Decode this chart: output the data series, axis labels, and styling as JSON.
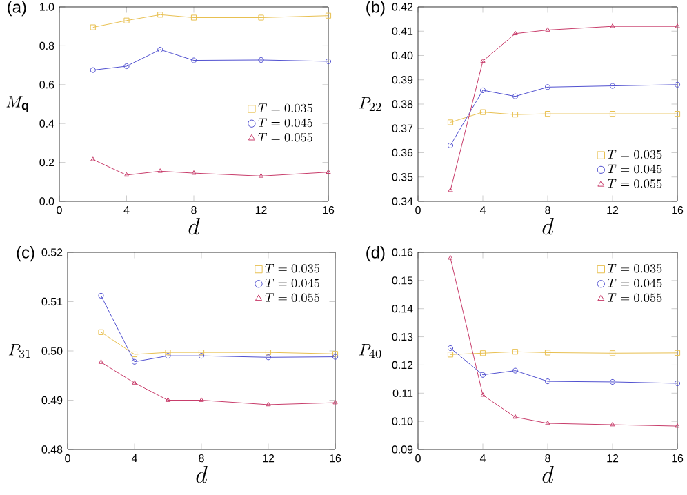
{
  "chart_data": [
    {
      "type": "line",
      "title": "(a)",
      "xlabel": "d",
      "ylabel": "M_{\\mathbf{q}}",
      "x": [
        2,
        4,
        6,
        8,
        12,
        16
      ],
      "xlim": [
        0,
        16
      ],
      "xticks": [
        0,
        4,
        8,
        12,
        16
      ],
      "ylim": [
        0,
        1
      ],
      "yticks": [
        {
          "value": 0,
          "label": "0.0"
        },
        {
          "value": 0.2,
          "label": "0.2"
        },
        {
          "value": 0.4,
          "label": "0.4"
        },
        {
          "value": 0.6,
          "label": "0.6"
        },
        {
          "value": 0.8,
          "label": "0.8"
        },
        {
          "value": 1,
          "label": "1.0"
        }
      ],
      "legend": "right",
      "grid": false,
      "series": [
        {
          "name": "T=0.035",
          "color": "#e8c050",
          "marker": "square",
          "values": [
            0.895,
            0.93,
            0.96,
            0.945,
            0.945,
            0.955
          ]
        },
        {
          "name": "T=0.045",
          "color": "#5050d0",
          "marker": "circle",
          "values": [
            0.675,
            0.695,
            0.78,
            0.725,
            0.727,
            0.72
          ]
        },
        {
          "name": "T=0.055",
          "color": "#c83c6a",
          "marker": "triangle",
          "values": [
            0.215,
            0.135,
            0.155,
            0.145,
            0.13,
            0.15
          ]
        }
      ]
    },
    {
      "type": "line",
      "title": "(b)",
      "xlabel": "d",
      "ylabel": "P_{22}",
      "x": [
        2,
        4,
        6,
        8,
        12,
        16
      ],
      "xlim": [
        0,
        16
      ],
      "xticks": [
        0,
        4,
        8,
        12,
        16
      ],
      "ylim": [
        0.34,
        0.42
      ],
      "yticks": [
        0.34,
        0.35,
        0.36,
        0.37,
        0.38,
        0.39,
        {
          "value": 0.4,
          "label": "0.40"
        },
        0.41,
        0.42
      ],
      "legend": "bottom right",
      "grid": false,
      "series": [
        {
          "name": "T=0.035",
          "color": "#e8c050",
          "marker": "square",
          "values": [
            0.3725,
            0.3767,
            0.3757,
            0.376,
            0.376,
            0.376
          ]
        },
        {
          "name": "T=0.045",
          "color": "#5050d0",
          "marker": "circle",
          "values": [
            0.363,
            0.3857,
            0.3832,
            0.387,
            0.3875,
            0.388
          ]
        },
        {
          "name": "T=0.055",
          "color": "#c83c6a",
          "marker": "triangle",
          "values": [
            0.3445,
            0.3977,
            0.409,
            0.4105,
            0.412,
            0.412
          ]
        }
      ]
    },
    {
      "type": "line",
      "title": "(c)",
      "xlabel": "d",
      "ylabel": "P_{31}",
      "x": [
        2,
        4,
        6,
        8,
        12,
        16
      ],
      "xlim": [
        0,
        16
      ],
      "xticks": [
        0,
        4,
        8,
        12,
        16
      ],
      "ylim": [
        0.48,
        0.52
      ],
      "yticks": [
        0.48,
        0.49,
        {
          "value": 0.5,
          "label": "0.50"
        },
        0.51,
        0.52
      ],
      "legend": "top right",
      "grid": false,
      "series": [
        {
          "name": "T=0.035",
          "color": "#e8c050",
          "marker": "square",
          "values": [
            0.5038,
            0.4993,
            0.4997,
            0.4997,
            0.4997,
            0.4994
          ]
        },
        {
          "name": "T=0.045",
          "color": "#5050d0",
          "marker": "circle",
          "values": [
            0.5112,
            0.4978,
            0.499,
            0.499,
            0.4987,
            0.4988
          ]
        },
        {
          "name": "T=0.055",
          "color": "#c83c6a",
          "marker": "triangle",
          "values": [
            0.4977,
            0.4935,
            0.49,
            0.49,
            0.4891,
            0.4895
          ]
        }
      ]
    },
    {
      "type": "line",
      "title": "(d)",
      "xlabel": "d",
      "ylabel": "P_{40}",
      "x": [
        2,
        4,
        6,
        8,
        12,
        16
      ],
      "xlim": [
        0,
        16
      ],
      "xticks": [
        0,
        4,
        8,
        12,
        16
      ],
      "ylim": [
        0.09,
        0.16
      ],
      "yticks": [
        0.09,
        {
          "value": 0.1,
          "label": "0.10"
        },
        0.11,
        0.12,
        0.13,
        0.14,
        0.15,
        0.16
      ],
      "legend": "top right",
      "grid": false,
      "series": [
        {
          "name": "T=0.035",
          "color": "#e8c050",
          "marker": "square",
          "values": [
            0.1237,
            0.1242,
            0.1247,
            0.1244,
            0.1242,
            0.1243
          ]
        },
        {
          "name": "T=0.045",
          "color": "#5050d0",
          "marker": "circle",
          "values": [
            0.126,
            0.1165,
            0.118,
            0.1142,
            0.114,
            0.1135
          ]
        },
        {
          "name": "T=0.055",
          "color": "#c83c6a",
          "marker": "triangle",
          "values": [
            0.158,
            0.1093,
            0.1015,
            0.0993,
            0.0988,
            0.0983
          ]
        }
      ]
    }
  ]
}
